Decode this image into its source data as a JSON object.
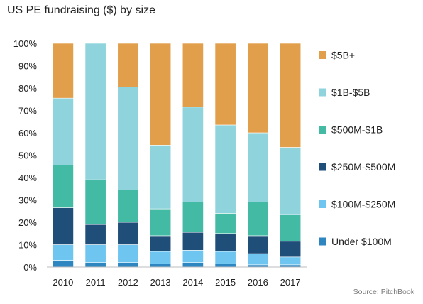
{
  "chart_data": {
    "type": "bar",
    "stacked": true,
    "normalized": true,
    "title": "US PE fundraising ($) by size",
    "source": "Source: PitchBook",
    "categories": [
      "2010",
      "2011",
      "2012",
      "2013",
      "2014",
      "2015",
      "2016",
      "2017"
    ],
    "ylim": [
      0,
      100
    ],
    "yticks": [
      "0%",
      "10%",
      "20%",
      "30%",
      "40%",
      "50%",
      "60%",
      "70%",
      "80%",
      "90%",
      "100%"
    ],
    "grid": false,
    "legend_position": "right",
    "series": [
      {
        "name": "Under $100M",
        "color": "#2e86c1",
        "values": [
          3,
          2,
          2,
          1.5,
          2,
          1.5,
          1,
          1
        ]
      },
      {
        "name": "$100M-$250M",
        "color": "#6ec6f0",
        "values": [
          7,
          8,
          8,
          5.5,
          5.5,
          5.5,
          5,
          3.5
        ]
      },
      {
        "name": "$250M-$500M",
        "color": "#1f4e79",
        "values": [
          16.5,
          9,
          10,
          7,
          8,
          8,
          8,
          7
        ]
      },
      {
        "name": "$500M-$1B",
        "color": "#43bba4",
        "values": [
          19,
          20,
          14.5,
          12,
          13.5,
          9,
          15,
          12
        ]
      },
      {
        "name": "$1B-$5B",
        "color": "#8fd4dc",
        "values": [
          30,
          61,
          46,
          28.5,
          42.5,
          39.5,
          31,
          30
        ]
      },
      {
        "name": "$5B+",
        "color": "#e29f4b",
        "values": [
          24.5,
          0,
          19.5,
          45.5,
          28.5,
          36.5,
          40,
          46.5
        ]
      }
    ]
  }
}
